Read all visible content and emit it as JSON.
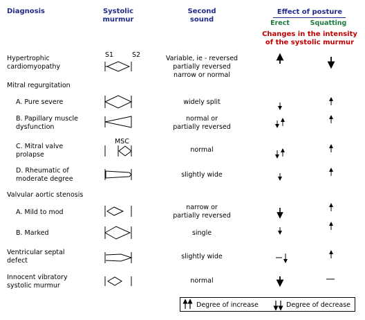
{
  "headers": {
    "diagnosis": "Diagnosis",
    "systolic_murmur": [
      "Systolic",
      "murmur"
    ],
    "second_sound": [
      "Second",
      "sound"
    ],
    "effect_of_posture": "Effect of posture",
    "erect": "Erect",
    "squatting": "Squatting",
    "intensity_note": [
      "Changes in the intensity",
      "of the systolic murmur"
    ]
  },
  "murmur_labels": {
    "s1": "S1",
    "s2": "S2",
    "msc": "MSC"
  },
  "rows": [
    {
      "diagnosis": [
        "Hypertrophic",
        "cardiomyopathy"
      ],
      "second_sound": [
        "Variable, ie - reversed",
        "partially reversed",
        "narrow or normal"
      ],
      "erect": "increase",
      "squatting": "decrease",
      "murmur": "diamond-full"
    },
    {
      "group": "Mitral regurgitation"
    },
    {
      "diagnosis": [
        "A. Pure severe"
      ],
      "second_sound": [
        "widely split"
      ],
      "erect": "decrease",
      "squatting": "increase",
      "murmur": "diamond-full"
    },
    {
      "diagnosis": [
        "B. Papillary muscle",
        "dysfunction"
      ],
      "second_sound": [
        "normal or",
        "partially reversed"
      ],
      "erect": "decrease-increase",
      "squatting": "increase",
      "murmur": "crescendo"
    },
    {
      "diagnosis": [
        "C. Mitral valve",
        "prolapse"
      ],
      "second_sound": [
        "normal"
      ],
      "erect": "decrease-increase",
      "squatting": "increase",
      "murmur": "late-diamond"
    },
    {
      "diagnosis": [
        "D. Rheumatic of",
        "moderate degree"
      ],
      "second_sound": [
        "slightly wide"
      ],
      "erect": "decrease",
      "squatting": "increase",
      "murmur": "plateau"
    },
    {
      "group": "Valvular aortic stenosis"
    },
    {
      "diagnosis": [
        "A. Mild to mod"
      ],
      "second_sound": [
        "narrow or",
        "partially reversed"
      ],
      "erect": "decrease",
      "squatting": "increase",
      "murmur": "small-diamond"
    },
    {
      "diagnosis": [
        "B. Marked"
      ],
      "second_sound": [
        "single"
      ],
      "erect": "decrease",
      "squatting": "increase",
      "murmur": "diamond-mid"
    },
    {
      "diagnosis": [
        "Ventricular septal",
        "defect"
      ],
      "second_sound": [
        "slightly wide"
      ],
      "erect": "dash-decrease",
      "squatting": "increase",
      "murmur": "holosystolic"
    },
    {
      "diagnosis": [
        "Innocent vibratory",
        "systolic murmur"
      ],
      "second_sound": [
        "normal"
      ],
      "erect": "decrease",
      "squatting": "dash",
      "murmur": "tiny-diamond"
    }
  ],
  "legend": {
    "increase": "Degree of increase",
    "decrease": "Degree of decrease"
  }
}
